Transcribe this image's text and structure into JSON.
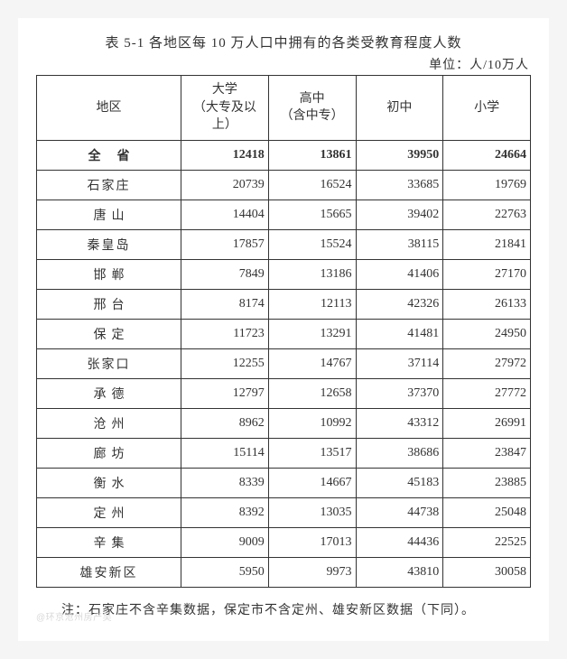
{
  "title": "表 5-1 各地区每 10 万人口中拥有的各类受教育程度人数",
  "unit": "单位：人/10万人",
  "columns": {
    "region": "地区",
    "university": "大学\n（大专及以\n上）",
    "high": "高中\n（含中专）",
    "middle": "初中",
    "primary": "小学"
  },
  "total_row": {
    "region": "全省",
    "university": 12418,
    "high": 13861,
    "middle": 39950,
    "primary": 24664
  },
  "rows": [
    {
      "region": "石家庄",
      "tight": true,
      "university": 20739,
      "high": 16524,
      "middle": 33685,
      "primary": 19769
    },
    {
      "region": "唐山",
      "tight": false,
      "university": 14404,
      "high": 15665,
      "middle": 39402,
      "primary": 22763
    },
    {
      "region": "秦皇岛",
      "tight": true,
      "university": 17857,
      "high": 15524,
      "middle": 38115,
      "primary": 21841
    },
    {
      "region": "邯郸",
      "tight": false,
      "university": 7849,
      "high": 13186,
      "middle": 41406,
      "primary": 27170
    },
    {
      "region": "邢台",
      "tight": false,
      "university": 8174,
      "high": 12113,
      "middle": 42326,
      "primary": 26133
    },
    {
      "region": "保定",
      "tight": false,
      "university": 11723,
      "high": 13291,
      "middle": 41481,
      "primary": 24950
    },
    {
      "region": "张家口",
      "tight": true,
      "university": 12255,
      "high": 14767,
      "middle": 37114,
      "primary": 27972
    },
    {
      "region": "承德",
      "tight": false,
      "university": 12797,
      "high": 12658,
      "middle": 37370,
      "primary": 27772
    },
    {
      "region": "沧州",
      "tight": false,
      "university": 8962,
      "high": 10992,
      "middle": 43312,
      "primary": 26991
    },
    {
      "region": "廊坊",
      "tight": false,
      "university": 15114,
      "high": 13517,
      "middle": 38686,
      "primary": 23847
    },
    {
      "region": "衡水",
      "tight": false,
      "university": 8339,
      "high": 14667,
      "middle": 45183,
      "primary": 23885
    },
    {
      "region": "定州",
      "tight": false,
      "university": 8392,
      "high": 13035,
      "middle": 44738,
      "primary": 25048
    },
    {
      "region": "辛集",
      "tight": false,
      "university": 9009,
      "high": 17013,
      "middle": 44436,
      "primary": 22525
    },
    {
      "region": "雄安新区",
      "tight": true,
      "university": 5950,
      "high": 9973,
      "middle": 43810,
      "primary": 30058
    }
  ],
  "note": "注：石家庄不含辛集数据，保定市不含定州、雄安新区数据（下同）。",
  "watermark": "@环京沧州房产吴"
}
